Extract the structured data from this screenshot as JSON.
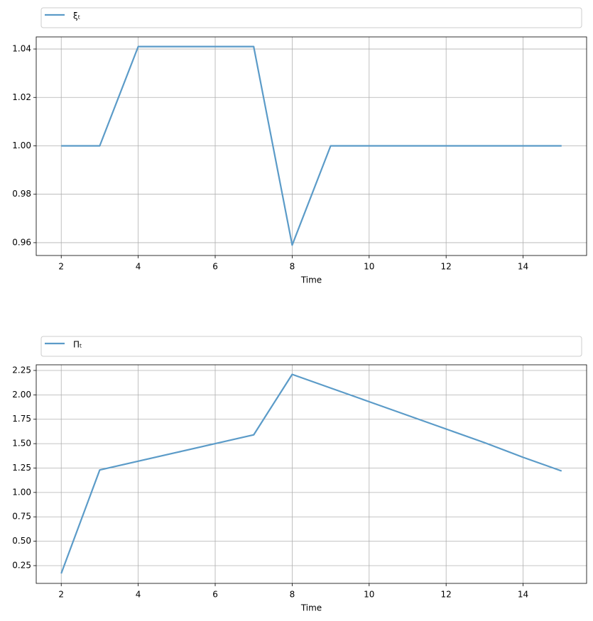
{
  "chart_data": [
    {
      "type": "line",
      "xlabel": "Time",
      "x": [
        2,
        3,
        4,
        5,
        6,
        7,
        8,
        9,
        10,
        11,
        12,
        13,
        14,
        15
      ],
      "series": [
        {
          "name": "ξₜ",
          "color": "#5b9bc8",
          "values": [
            1.0,
            1.0,
            1.041,
            1.041,
            1.041,
            1.041,
            0.959,
            1.0,
            1.0,
            1.0,
            1.0,
            1.0,
            1.0,
            1.0
          ]
        }
      ],
      "xlim": [
        1.35,
        15.65
      ],
      "xticks": [
        2,
        4,
        6,
        8,
        10,
        12,
        14
      ],
      "ylim": [
        0.9547,
        1.045
      ],
      "yticks": [
        0.96,
        0.98,
        {
          "value": 1.0,
          "label": "1.00"
        },
        1.02,
        1.04
      ],
      "grid": true,
      "legend": "top"
    },
    {
      "type": "line",
      "xlabel": "Time",
      "x": [
        2,
        3,
        4,
        5,
        6,
        7,
        8,
        9,
        10,
        11,
        12,
        13,
        14,
        15
      ],
      "series": [
        {
          "name": "Πₜ",
          "color": "#5b9bc8",
          "values": [
            0.17,
            1.23,
            1.32,
            1.41,
            1.5,
            1.59,
            2.21,
            2.07,
            1.93,
            1.79,
            1.65,
            1.51,
            1.36,
            1.22
          ]
        }
      ],
      "xlim": [
        1.35,
        15.65
      ],
      "xticks": [
        2,
        4,
        6,
        8,
        10,
        12,
        14
      ],
      "ylim": [
        0.068,
        2.308
      ],
      "yticks": [
        0.25,
        {
          "value": 0.5,
          "label": "0.50"
        },
        0.75,
        {
          "value": 1.0,
          "label": "1.00"
        },
        1.25,
        {
          "value": 1.5,
          "label": "1.50"
        },
        1.75,
        {
          "value": 2.0,
          "label": "2.00"
        },
        2.25
      ],
      "grid": true,
      "legend": "top"
    }
  ]
}
